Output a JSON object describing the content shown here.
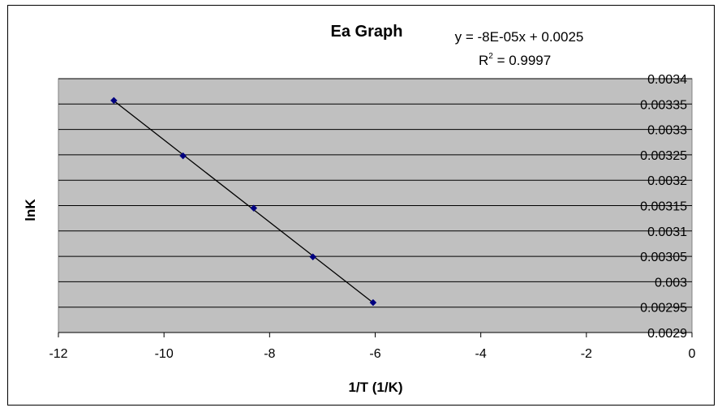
{
  "chart_data": {
    "type": "scatter",
    "title": "Ea Graph",
    "xlabel": "1/T (1/K)",
    "ylabel": "lnK",
    "xlim": [
      -12,
      0
    ],
    "ylim": [
      0.0029,
      0.0034
    ],
    "x_ticks": [
      "-12",
      "-10",
      "-8",
      "-6",
      "-4",
      "-2",
      "0"
    ],
    "x_tick_values": [
      -12,
      -10,
      -8,
      -6,
      -4,
      -2,
      0
    ],
    "y_ticks": [
      "0.0029",
      "0.00295",
      "0.003",
      "0.00305",
      "0.0031",
      "0.00315",
      "0.0032",
      "0.00325",
      "0.0033",
      "0.00335",
      "0.0034"
    ],
    "y_tick_values": [
      0.0029,
      0.00295,
      0.003,
      0.00305,
      0.0031,
      0.00315,
      0.0032,
      0.00325,
      0.0033,
      0.00335,
      0.0034
    ],
    "y_axis_side": "right",
    "grid": "horizontal",
    "plot_background": "#c0c0c0",
    "marker_color": "#000080",
    "trendline_color": "#000000",
    "series": [
      {
        "x": [
          -10.95,
          -9.64,
          -8.3,
          -7.18,
          -6.04
        ],
        "y": [
          0.003357,
          0.003248,
          0.003145,
          0.003049,
          0.002959
        ]
      }
    ],
    "trendline": {
      "type": "linear",
      "x_range": [
        -10.95,
        -6.04
      ],
      "equation_line1": "y = -8E-05x + 0.0025",
      "r2_label_R": "R",
      "r2_label_sup": "2",
      "r2_label_rest": " = 0.9997"
    }
  }
}
